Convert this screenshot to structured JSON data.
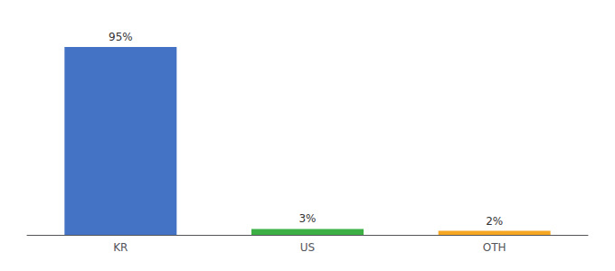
{
  "chart_data": {
    "type": "bar",
    "categories": [
      "KR",
      "US",
      "OTH"
    ],
    "values": [
      95,
      3,
      2
    ],
    "value_labels": [
      "95%",
      "3%",
      "2%"
    ],
    "colors": [
      "#4472c4",
      "#3cb044",
      "#f5a623"
    ],
    "ylim": [
      0,
      105
    ],
    "data_labels": true,
    "tick_labels": "x",
    "grid": false
  }
}
